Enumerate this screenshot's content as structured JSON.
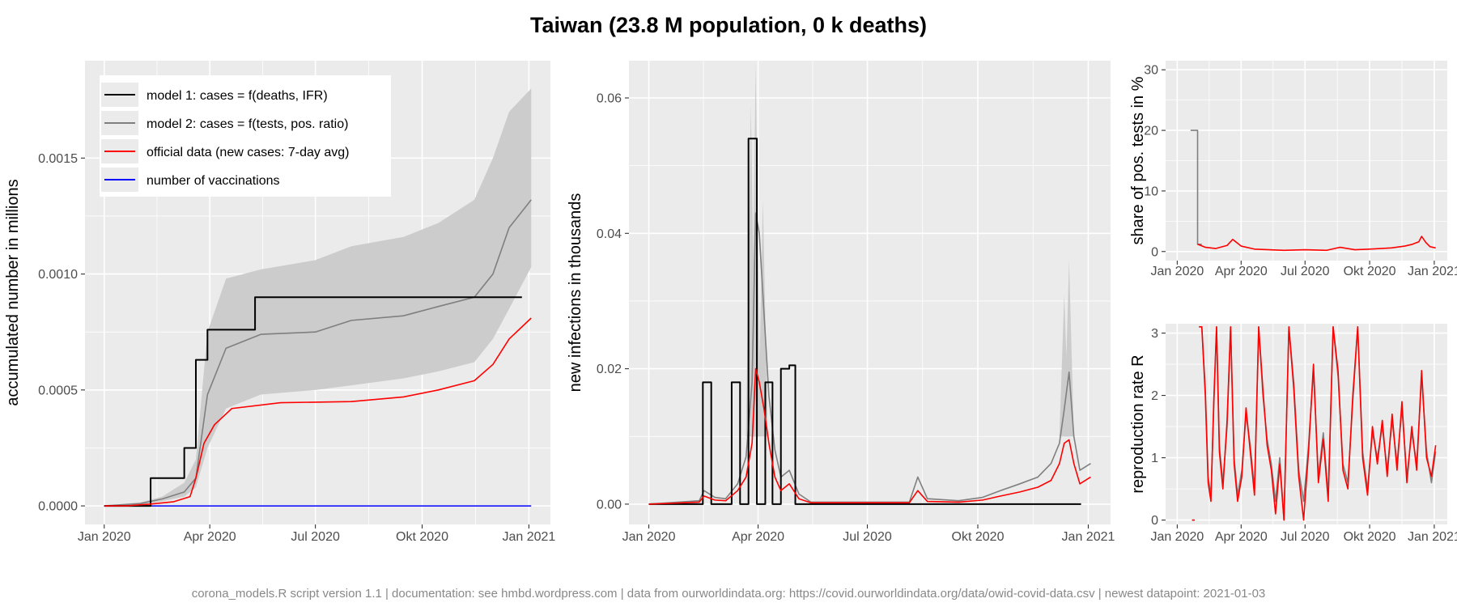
{
  "title": "Taiwan (23.8 M population, 0 k deaths)",
  "footer": "corona_models.R script version 1.1 | documentation: see hmbd.wordpress.com | data from ourworldindata.org: https://covid.ourworldindata.org/data/owid-covid-data.csv | newest datapoint: 2021-01-03",
  "colors": {
    "model1": "#000000",
    "model2": "#7f7f7f",
    "band": "#cccccc",
    "official": "#ff0000",
    "vaccinations": "#0000ff",
    "panel_bg": "#ebebeb",
    "grid": "#ffffff"
  },
  "chart_data": [
    {
      "id": "cumulative",
      "type": "line",
      "ylabel": "accumulated number in millions",
      "x_ticks": [
        "Jan 2020",
        "Apr 2020",
        "Jul 2020",
        "Okt 2020",
        "Jan 2021"
      ],
      "x_range": [
        "2020-01-01",
        "2021-01-03"
      ],
      "ylim": [
        -8e-05,
        0.00192
      ],
      "y_ticks": [
        "0.0000",
        "0.0005",
        "0.0010",
        "0.0015"
      ],
      "y_tick_values": [
        0,
        0.0005,
        0.001,
        0.0015
      ],
      "legend": {
        "position": "top-left",
        "entries": [
          {
            "label": "model 1: cases = f(deaths, IFR)",
            "color": "#000000"
          },
          {
            "label": "model 2: cases = f(tests, pos. ratio)",
            "color": "#7f7f7f"
          },
          {
            "label": "official data (new cases: 7-day avg)",
            "color": "#ff0000"
          },
          {
            "label": "number of vaccinations",
            "color": "#0000ff"
          }
        ]
      },
      "series": [
        {
          "id": "model1",
          "step": true,
          "x": [
            "2020-01-01",
            "2020-02-10",
            "2020-03-10",
            "2020-03-20",
            "2020-03-30",
            "2020-04-10",
            "2020-05-10",
            "2020-12-26"
          ],
          "y": [
            0,
            0.00012,
            0.00025,
            0.00063,
            0.00076,
            0.00076,
            0.0009,
            0.0009
          ]
        },
        {
          "id": "model2",
          "x": [
            "2020-01-01",
            "2020-02-01",
            "2020-02-20",
            "2020-03-10",
            "2020-03-20",
            "2020-03-30",
            "2020-04-15",
            "2020-05-15",
            "2020-07-01",
            "2020-08-01",
            "2020-09-15",
            "2020-10-15",
            "2020-11-15",
            "2020-12-01",
            "2020-12-15",
            "2021-01-03"
          ],
          "y": [
            0,
            1e-05,
            3e-05,
            6e-05,
            0.00012,
            0.00048,
            0.00068,
            0.00074,
            0.00075,
            0.0008,
            0.00082,
            0.00086,
            0.0009,
            0.001,
            0.0012,
            0.00132
          ]
        },
        {
          "id": "band_upper",
          "x": [
            "2020-01-01",
            "2020-02-01",
            "2020-02-20",
            "2020-03-10",
            "2020-03-20",
            "2020-03-30",
            "2020-04-15",
            "2020-05-15",
            "2020-07-01",
            "2020-08-01",
            "2020-09-15",
            "2020-10-15",
            "2020-11-15",
            "2020-12-01",
            "2020-12-15",
            "2021-01-03"
          ],
          "y": [
            0,
            1.5e-05,
            4e-05,
            0.0001,
            0.0002,
            0.00075,
            0.00098,
            0.00102,
            0.00106,
            0.00112,
            0.00116,
            0.00122,
            0.00132,
            0.0015,
            0.0017,
            0.0018
          ]
        },
        {
          "id": "band_lower",
          "x": [
            "2020-01-01",
            "2020-02-01",
            "2020-02-20",
            "2020-03-10",
            "2020-03-20",
            "2020-03-30",
            "2020-04-15",
            "2020-05-15",
            "2020-07-01",
            "2020-08-01",
            "2020-09-15",
            "2020-10-15",
            "2020-11-15",
            "2020-12-01",
            "2020-12-15",
            "2021-01-03"
          ],
          "y": [
            0,
            5e-06,
            2e-05,
            4e-05,
            8e-05,
            0.00025,
            0.00042,
            0.00048,
            0.0005,
            0.00052,
            0.00055,
            0.00058,
            0.00062,
            0.00072,
            0.00085,
            0.00103
          ]
        },
        {
          "id": "official",
          "x": [
            "2020-01-01",
            "2020-01-20",
            "2020-02-10",
            "2020-03-01",
            "2020-03-15",
            "2020-03-20",
            "2020-03-27",
            "2020-04-05",
            "2020-04-20",
            "2020-06-01",
            "2020-08-01",
            "2020-09-15",
            "2020-10-15",
            "2020-11-15",
            "2020-12-01",
            "2020-12-15",
            "2021-01-03"
          ],
          "y": [
            0,
            0,
            8e-06,
            1.8e-05,
            4e-05,
            0.00012,
            0.00027,
            0.00035,
            0.00042,
            0.000445,
            0.00045,
            0.00047,
            0.0005,
            0.00054,
            0.00061,
            0.00072,
            0.00081
          ]
        },
        {
          "id": "vaccinations",
          "x": [
            "2020-01-01",
            "2021-01-03"
          ],
          "y": [
            0,
            0
          ]
        }
      ]
    },
    {
      "id": "daily",
      "type": "line",
      "ylabel": "new infections in thousands",
      "x_ticks": [
        "Jan 2020",
        "Apr 2020",
        "Jul 2020",
        "Okt 2020",
        "Jan 2021"
      ],
      "x_range": [
        "2020-01-01",
        "2021-01-03"
      ],
      "ylim": [
        -0.003,
        0.0655
      ],
      "y_ticks": [
        "0.00",
        "0.02",
        "0.04",
        "0.06"
      ],
      "y_tick_values": [
        0,
        0.02,
        0.04,
        0.06
      ],
      "series": [
        {
          "id": "model1",
          "step": true,
          "x": [
            "2020-01-01",
            "2020-02-15",
            "2020-02-22",
            "2020-03-10",
            "2020-03-17",
            "2020-03-24",
            "2020-03-31",
            "2020-04-07",
            "2020-04-13",
            "2020-04-20",
            "2020-04-27",
            "2020-05-02",
            "2020-12-26"
          ],
          "y": [
            0,
            0.018,
            0,
            0.018,
            0,
            0.054,
            0,
            0.018,
            0,
            0.02,
            0.0205,
            0,
            0
          ]
        },
        {
          "id": "band_spikes",
          "x": [
            "2020-03-26",
            "2020-03-30",
            "2020-04-05",
            "2020-12-12",
            "2020-12-16"
          ],
          "y": [
            0.059,
            0.065,
            0.045,
            0.031,
            0.036
          ]
        },
        {
          "id": "model2",
          "x": [
            "2020-01-01",
            "2020-02-12",
            "2020-02-16",
            "2020-02-25",
            "2020-03-05",
            "2020-03-15",
            "2020-03-22",
            "2020-03-27",
            "2020-03-30",
            "2020-04-02",
            "2020-04-06",
            "2020-04-10",
            "2020-04-15",
            "2020-04-20",
            "2020-04-27",
            "2020-05-05",
            "2020-05-15",
            "2020-08-05",
            "2020-08-12",
            "2020-08-20",
            "2020-09-15",
            "2020-10-05",
            "2020-10-20",
            "2020-11-05",
            "2020-11-20",
            "2020-12-01",
            "2020-12-08",
            "2020-12-12",
            "2020-12-16",
            "2020-12-20",
            "2020-12-25",
            "2021-01-03"
          ],
          "y": [
            0,
            0.0005,
            0.002,
            0.001,
            0.0008,
            0.003,
            0.007,
            0.018,
            0.043,
            0.04,
            0.028,
            0.016,
            0.008,
            0.004,
            0.005,
            0.0015,
            0.0003,
            0.0003,
            0.004,
            0.0008,
            0.0005,
            0.001,
            0.002,
            0.003,
            0.004,
            0.006,
            0.009,
            0.014,
            0.0195,
            0.01,
            0.005,
            0.006
          ]
        },
        {
          "id": "official",
          "x": [
            "2020-01-01",
            "2020-02-12",
            "2020-02-16",
            "2020-02-25",
            "2020-03-05",
            "2020-03-15",
            "2020-03-22",
            "2020-03-27",
            "2020-03-30",
            "2020-04-02",
            "2020-04-06",
            "2020-04-10",
            "2020-04-15",
            "2020-04-20",
            "2020-04-27",
            "2020-05-05",
            "2020-05-15",
            "2020-08-05",
            "2020-08-12",
            "2020-08-20",
            "2020-09-15",
            "2020-10-05",
            "2020-10-20",
            "2020-11-05",
            "2020-11-20",
            "2020-12-01",
            "2020-12-08",
            "2020-12-12",
            "2020-12-16",
            "2020-12-20",
            "2020-12-25",
            "2021-01-03"
          ],
          "y": [
            0,
            0.0003,
            0.0012,
            0.0006,
            0.0005,
            0.002,
            0.004,
            0.009,
            0.02,
            0.018,
            0.014,
            0.009,
            0.004,
            0.002,
            0.003,
            0.0008,
            0.0002,
            0.0002,
            0.002,
            0.0004,
            0.0003,
            0.0006,
            0.0012,
            0.0018,
            0.0025,
            0.0035,
            0.006,
            0.009,
            0.0095,
            0.006,
            0.003,
            0.004
          ]
        }
      ]
    },
    {
      "id": "positive_share",
      "type": "line",
      "ylabel": "share of pos. tests in %",
      "x_ticks": [
        "Jan 2020",
        "Apr 2020",
        "Jul 2020",
        "Okt 2020",
        "Jan 2021"
      ],
      "x_range": [
        "2020-01-01",
        "2021-01-03"
      ],
      "ylim": [
        -1.5,
        31.5
      ],
      "y_ticks": [
        "0",
        "10",
        "20",
        "30"
      ],
      "y_tick_values": [
        0,
        10,
        20,
        30
      ],
      "series": [
        {
          "id": "model2",
          "step": true,
          "x": [
            "2020-01-20",
            "2020-01-28",
            "2020-01-30",
            "2020-02-05"
          ],
          "y": [
            20,
            20,
            1.2,
            1.2
          ]
        },
        {
          "id": "official",
          "x": [
            "2020-01-30",
            "2020-02-10",
            "2020-02-25",
            "2020-03-12",
            "2020-03-20",
            "2020-04-01",
            "2020-04-20",
            "2020-06-01",
            "2020-07-01",
            "2020-08-01",
            "2020-08-20",
            "2020-09-10",
            "2020-10-01",
            "2020-11-01",
            "2020-11-20",
            "2020-12-01",
            "2020-12-10",
            "2020-12-14",
            "2020-12-20",
            "2020-12-26",
            "2021-01-03"
          ],
          "y": [
            1.2,
            0.7,
            0.5,
            1.0,
            2.0,
            0.9,
            0.4,
            0.2,
            0.3,
            0.2,
            0.7,
            0.3,
            0.4,
            0.6,
            0.9,
            1.2,
            1.6,
            2.5,
            1.5,
            0.8,
            0.6
          ]
        }
      ]
    },
    {
      "id": "reproduction_rate",
      "type": "line",
      "ylabel": "reproduction rate R",
      "x_ticks": [
        "Jan 2020",
        "Apr 2020",
        "Jul 2020",
        "Okt 2020",
        "Jan 2021"
      ],
      "x_range": [
        "2020-01-01",
        "2021-01-03"
      ],
      "ylim": [
        -0.07,
        3.15
      ],
      "y_ticks": [
        "0",
        "1",
        "2",
        "3"
      ],
      "y_tick_values": [
        0,
        1,
        2,
        3
      ],
      "series": [
        {
          "id": "model2",
          "x": [
            "2020-02-01",
            "2020-02-05",
            "2020-02-10",
            "2020-02-14",
            "2020-02-18",
            "2020-02-22",
            "2020-02-26",
            "2020-03-01",
            "2020-03-06",
            "2020-03-12",
            "2020-03-17",
            "2020-03-22",
            "2020-03-27",
            "2020-04-02",
            "2020-04-08",
            "2020-04-14",
            "2020-04-20",
            "2020-04-26",
            "2020-05-02",
            "2020-05-08",
            "2020-05-14",
            "2020-05-20",
            "2020-05-26",
            "2020-06-01",
            "2020-06-08",
            "2020-06-15",
            "2020-06-22",
            "2020-06-29",
            "2020-07-06",
            "2020-07-13",
            "2020-07-20",
            "2020-07-27",
            "2020-08-03",
            "2020-08-10",
            "2020-08-17",
            "2020-08-24",
            "2020-08-31",
            "2020-09-07",
            "2020-09-14",
            "2020-09-21",
            "2020-09-28",
            "2020-10-05",
            "2020-10-12",
            "2020-10-19",
            "2020-10-26",
            "2020-11-02",
            "2020-11-09",
            "2020-11-16",
            "2020-11-23",
            "2020-11-30",
            "2020-12-07",
            "2020-12-14",
            "2020-12-21",
            "2020-12-28",
            "2021-01-03"
          ],
          "y": [
            3.1,
            3.1,
            2.1,
            0.7,
            0.4,
            1.8,
            3.1,
            1.2,
            0.6,
            1.5,
            3.1,
            1.0,
            0.4,
            0.8,
            1.7,
            1.2,
            0.5,
            3.1,
            2.0,
            1.3,
            0.9,
            0.3,
            1.0,
            0.0,
            3.1,
            2.2,
            0.8,
            0.3,
            1.2,
            2.4,
            0.7,
            1.4,
            0.4,
            3.1,
            2.3,
            0.9,
            0.6,
            1.9,
            3.1,
            1.1,
            0.5,
            1.4,
            1.0,
            1.5,
            0.8,
            1.6,
            0.9,
            1.8,
            0.7,
            1.4,
            0.9,
            2.3,
            1.1,
            0.6,
            1.1
          ]
        },
        {
          "id": "official",
          "x": [
            "2020-02-01",
            "2020-02-05",
            "2020-02-10",
            "2020-02-14",
            "2020-02-18",
            "2020-02-22",
            "2020-02-26",
            "2020-03-01",
            "2020-03-06",
            "2020-03-12",
            "2020-03-17",
            "2020-03-22",
            "2020-03-27",
            "2020-04-02",
            "2020-04-08",
            "2020-04-14",
            "2020-04-20",
            "2020-04-26",
            "2020-05-02",
            "2020-05-08",
            "2020-05-14",
            "2020-05-20",
            "2020-05-26",
            "2020-06-01",
            "2020-06-08",
            "2020-06-15",
            "2020-06-22",
            "2020-06-29",
            "2020-07-06",
            "2020-07-13",
            "2020-07-20",
            "2020-07-27",
            "2020-08-03",
            "2020-08-10",
            "2020-08-17",
            "2020-08-24",
            "2020-08-31",
            "2020-09-07",
            "2020-09-14",
            "2020-09-21",
            "2020-09-28",
            "2020-10-05",
            "2020-10-12",
            "2020-10-19",
            "2020-10-26",
            "2020-11-02",
            "2020-11-09",
            "2020-11-16",
            "2020-11-23",
            "2020-11-30",
            "2020-12-07",
            "2020-12-14",
            "2020-12-21",
            "2020-12-28",
            "2021-01-03"
          ],
          "y": [
            3.1,
            3.1,
            2.0,
            0.6,
            0.3,
            1.9,
            3.1,
            1.1,
            0.5,
            1.6,
            3.1,
            0.9,
            0.3,
            0.7,
            1.8,
            1.1,
            0.4,
            3.1,
            2.1,
            1.2,
            0.8,
            0.1,
            0.9,
            0.0,
            3.1,
            2.1,
            0.7,
            0.0,
            1.1,
            2.5,
            0.6,
            1.3,
            0.3,
            3.1,
            2.4,
            0.8,
            0.5,
            2.0,
            3.1,
            1.0,
            0.4,
            1.5,
            0.9,
            1.6,
            0.7,
            1.7,
            0.8,
            1.9,
            0.6,
            1.5,
            0.8,
            2.4,
            1.0,
            0.7,
            1.2
          ]
        },
        {
          "id": "official_early",
          "x": [
            "2020-01-22",
            "2020-01-26"
          ],
          "y": [
            0,
            0
          ]
        }
      ]
    }
  ]
}
